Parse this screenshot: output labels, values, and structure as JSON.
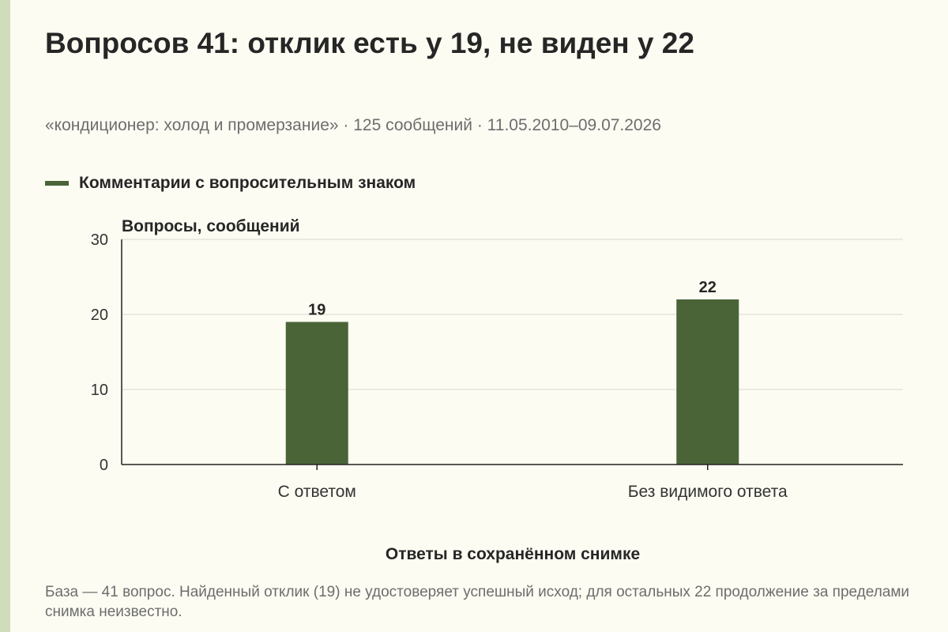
{
  "header": {
    "title": "Вопросов 41: отклик есть у 19, не виден у 22",
    "subtitle": "«кондиционер: холод и промерзание» · 125 сообщений · 11.05.2010–09.07.2026"
  },
  "legend": {
    "label": "Комментарии с вопросительным знаком",
    "color": "#4a6438"
  },
  "footnote": "База — 41 вопрос. Найденный отклик (19) не удостоверяет успешный исход; для остальных 22 продолжение за пределами снимка неизвестно.",
  "chart_data": {
    "type": "bar",
    "categories": [
      "С ответом",
      "Без видимого ответа"
    ],
    "series": [
      {
        "name": "Комментарии с вопросительным знаком",
        "values": [
          19,
          22
        ],
        "color": "#4a6438"
      }
    ],
    "data_labels": [
      "19",
      "22"
    ],
    "ylabel": "Вопросы, сообщений",
    "xlabel": "Ответы в сохранённом снимке",
    "ylim": [
      0,
      30
    ],
    "yticks": [
      0,
      10,
      20,
      30
    ],
    "grid": true,
    "legend_position": "top-left"
  }
}
